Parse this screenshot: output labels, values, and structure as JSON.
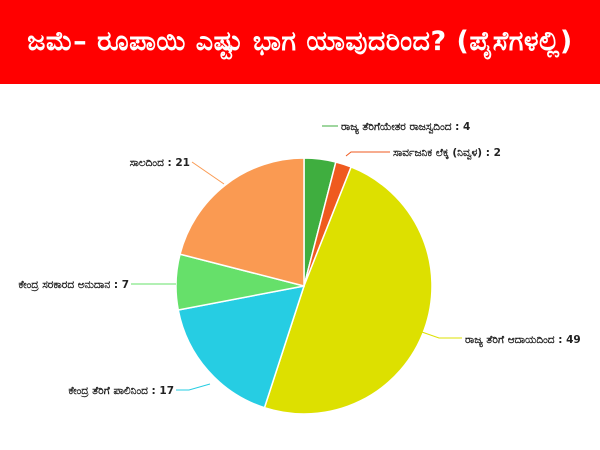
{
  "banner": {
    "title": "ಜಮೆ– ರೂಪಾಯಿ ಎಷ್ಟು ಭಾಗ ಯಾವುದರಿಂದ? (ಪೈಸೆಗಳಲ್ಲಿ)",
    "background": "#ff0000",
    "text_color": "#ffffff"
  },
  "chart_data": {
    "type": "pie",
    "title": "ಜಮೆ– ರೂಪಾಯಿ ಎಷ್ಟು ಭಾಗ ಯಾವುದರಿಂದ? (ಪೈಸೆಗಳಲ್ಲಿ)",
    "start": "top",
    "direction": "clockwise",
    "slices": [
      {
        "label": "ರಾಜ್ಯ ತೆರಿಗೆಯೇತರ ರಾಜಸ್ವದಿಂದ",
        "value": 4,
        "color": "#3fae3f",
        "text": "ರಾಜ್ಯ ತೆರಿಗೆಯೇತರ ರಾಜಸ್ವದಿಂದ : 4"
      },
      {
        "label": "ಸಾರ್ವಜನಿಕ ಲೆಕ್ಕ (ನಿವ್ವಳ)",
        "value": 2,
        "color": "#ef5a1f",
        "text": "ಸಾರ್ವಜನಿಕ ಲೆಕ್ಕ (ನಿವ್ವಳ) : 2"
      },
      {
        "label": "ರಾಜ್ಯ ತೆರಿಗೆ ಆದಾಯದಿಂದ",
        "value": 49,
        "color": "#dde000",
        "text": "ರಾಜ್ಯ ತೆರಿಗೆ ಆದಾಯದಿಂದ : 49"
      },
      {
        "label": "ಕೇಂದ್ರ ತೆರಿಗೆ ಪಾಲಿನಿಂದ",
        "value": 17,
        "color": "#26cde3",
        "text": "ಕೇಂದ್ರ ತೆರಿಗೆ ಪಾಲಿನಿಂದ : 17"
      },
      {
        "label": "ಕೇಂದ್ರ ಸರಕಾರದ ಅನುದಾನ",
        "value": 7,
        "color": "#66e06a",
        "text": "ಕೇಂದ್ರ ಸರಕಾರದ ಅನುದಾನ : 7"
      },
      {
        "label": "ಸಾಲದಿಂದ",
        "value": 21,
        "color": "#fa9a52",
        "text": "ಸಾಲದಿಂದ : 21"
      }
    ]
  }
}
